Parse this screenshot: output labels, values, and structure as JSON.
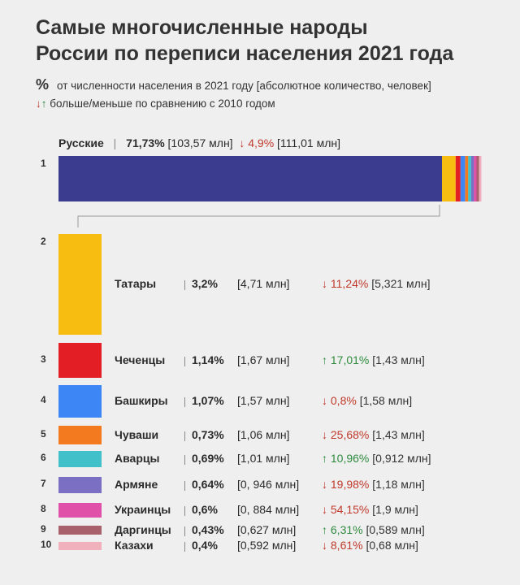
{
  "title_line1": "Самые многочисленные народы",
  "title_line2": "России по переписи населения 2021 года",
  "legend": {
    "percent_symbol": "%",
    "percent_text": "от численности населения в 2021 году [абсолютное количество, человек]",
    "arrows_symbol": "↓↑",
    "arrows_text": "больше/меньше по сравнению с 2010 годом"
  },
  "colors": {
    "Русские": "#3b3b8f",
    "Татары": "#f7bd10",
    "Чеченцы": "#e31e24",
    "Башкиры": "#3d86f5",
    "Чуваши": "#f47a1f",
    "Аварцы": "#40c0c8",
    "Армяне": "#7b6fc4",
    "Украинцы": "#e150a8",
    "Даргинцы": "#a8606a",
    "Казахи": "#f0b0bc",
    "arrow_down": "#c0392b",
    "arrow_up": "#2e8b3e"
  },
  "chart_data": {
    "type": "bar",
    "title": "Самые многочисленные народы России по переписи населения 2021 года",
    "unit_share": "%",
    "unit_absolute": "млн",
    "rows": [
      {
        "rank": "1",
        "name": "Русские",
        "pct": 71.73,
        "pct_label": "71,73%",
        "abs_label": "[103,57 млн]",
        "dir": "down",
        "arrow": "↓",
        "chg_label": "4,9%",
        "prev_label": "[111,01 млн]"
      },
      {
        "rank": "2",
        "name": "Татары",
        "pct": 3.2,
        "pct_label": "3,2%",
        "abs_label": "[4,71 млн]",
        "dir": "down",
        "arrow": "↓",
        "chg_label": "11,24%",
        "prev_label": "[5,321 млн]"
      },
      {
        "rank": "3",
        "name": "Чеченцы",
        "pct": 1.14,
        "pct_label": "1,14%",
        "abs_label": "[1,67 млн]",
        "dir": "up",
        "arrow": "↑",
        "chg_label": "17,01%",
        "prev_label": "[1,43 млн]"
      },
      {
        "rank": "4",
        "name": "Башкиры",
        "pct": 1.07,
        "pct_label": "1,07%",
        "abs_label": "[1,57 млн]",
        "dir": "down",
        "arrow": "↓",
        "chg_label": "0,8%",
        "prev_label": "[1,58 млн]"
      },
      {
        "rank": "5",
        "name": "Чуваши",
        "pct": 0.73,
        "pct_label": "0,73%",
        "abs_label": "[1,06 млн]",
        "dir": "down",
        "arrow": "↓",
        "chg_label": "25,68%",
        "prev_label": "[1,43 млн]"
      },
      {
        "rank": "6",
        "name": "Аварцы",
        "pct": 0.69,
        "pct_label": "0,69%",
        "abs_label": "[1,01 млн]",
        "dir": "up",
        "arrow": "↑",
        "chg_label": "10,96%",
        "prev_label": "[0,912 млн]"
      },
      {
        "rank": "7",
        "name": "Армяне",
        "pct": 0.64,
        "pct_label": "0,64%",
        "abs_label": "[0, 946 млн]",
        "dir": "down",
        "arrow": "↓",
        "chg_label": "19,98%",
        "prev_label": "[1,18 млн]"
      },
      {
        "rank": "8",
        "name": "Украинцы",
        "pct": 0.6,
        "pct_label": "0,6%",
        "abs_label": "[0, 884 млн]",
        "dir": "down",
        "arrow": "↓",
        "chg_label": "54,15%",
        "prev_label": "[1,9 млн]"
      },
      {
        "rank": "9",
        "name": "Даргинцы",
        "pct": 0.43,
        "pct_label": "0,43%",
        "abs_label": "[0,627 млн]",
        "dir": "up",
        "arrow": "↑",
        "chg_label": "6,31%",
        "prev_label": "[0,589 млн]"
      },
      {
        "rank": "10",
        "name": "Казахи",
        "pct": 0.4,
        "pct_label": "0,4%",
        "abs_label": "[0,592 млн]",
        "dir": "down",
        "arrow": "↓",
        "chg_label": "8,61%",
        "prev_label": "[0,68 млн]"
      }
    ]
  }
}
